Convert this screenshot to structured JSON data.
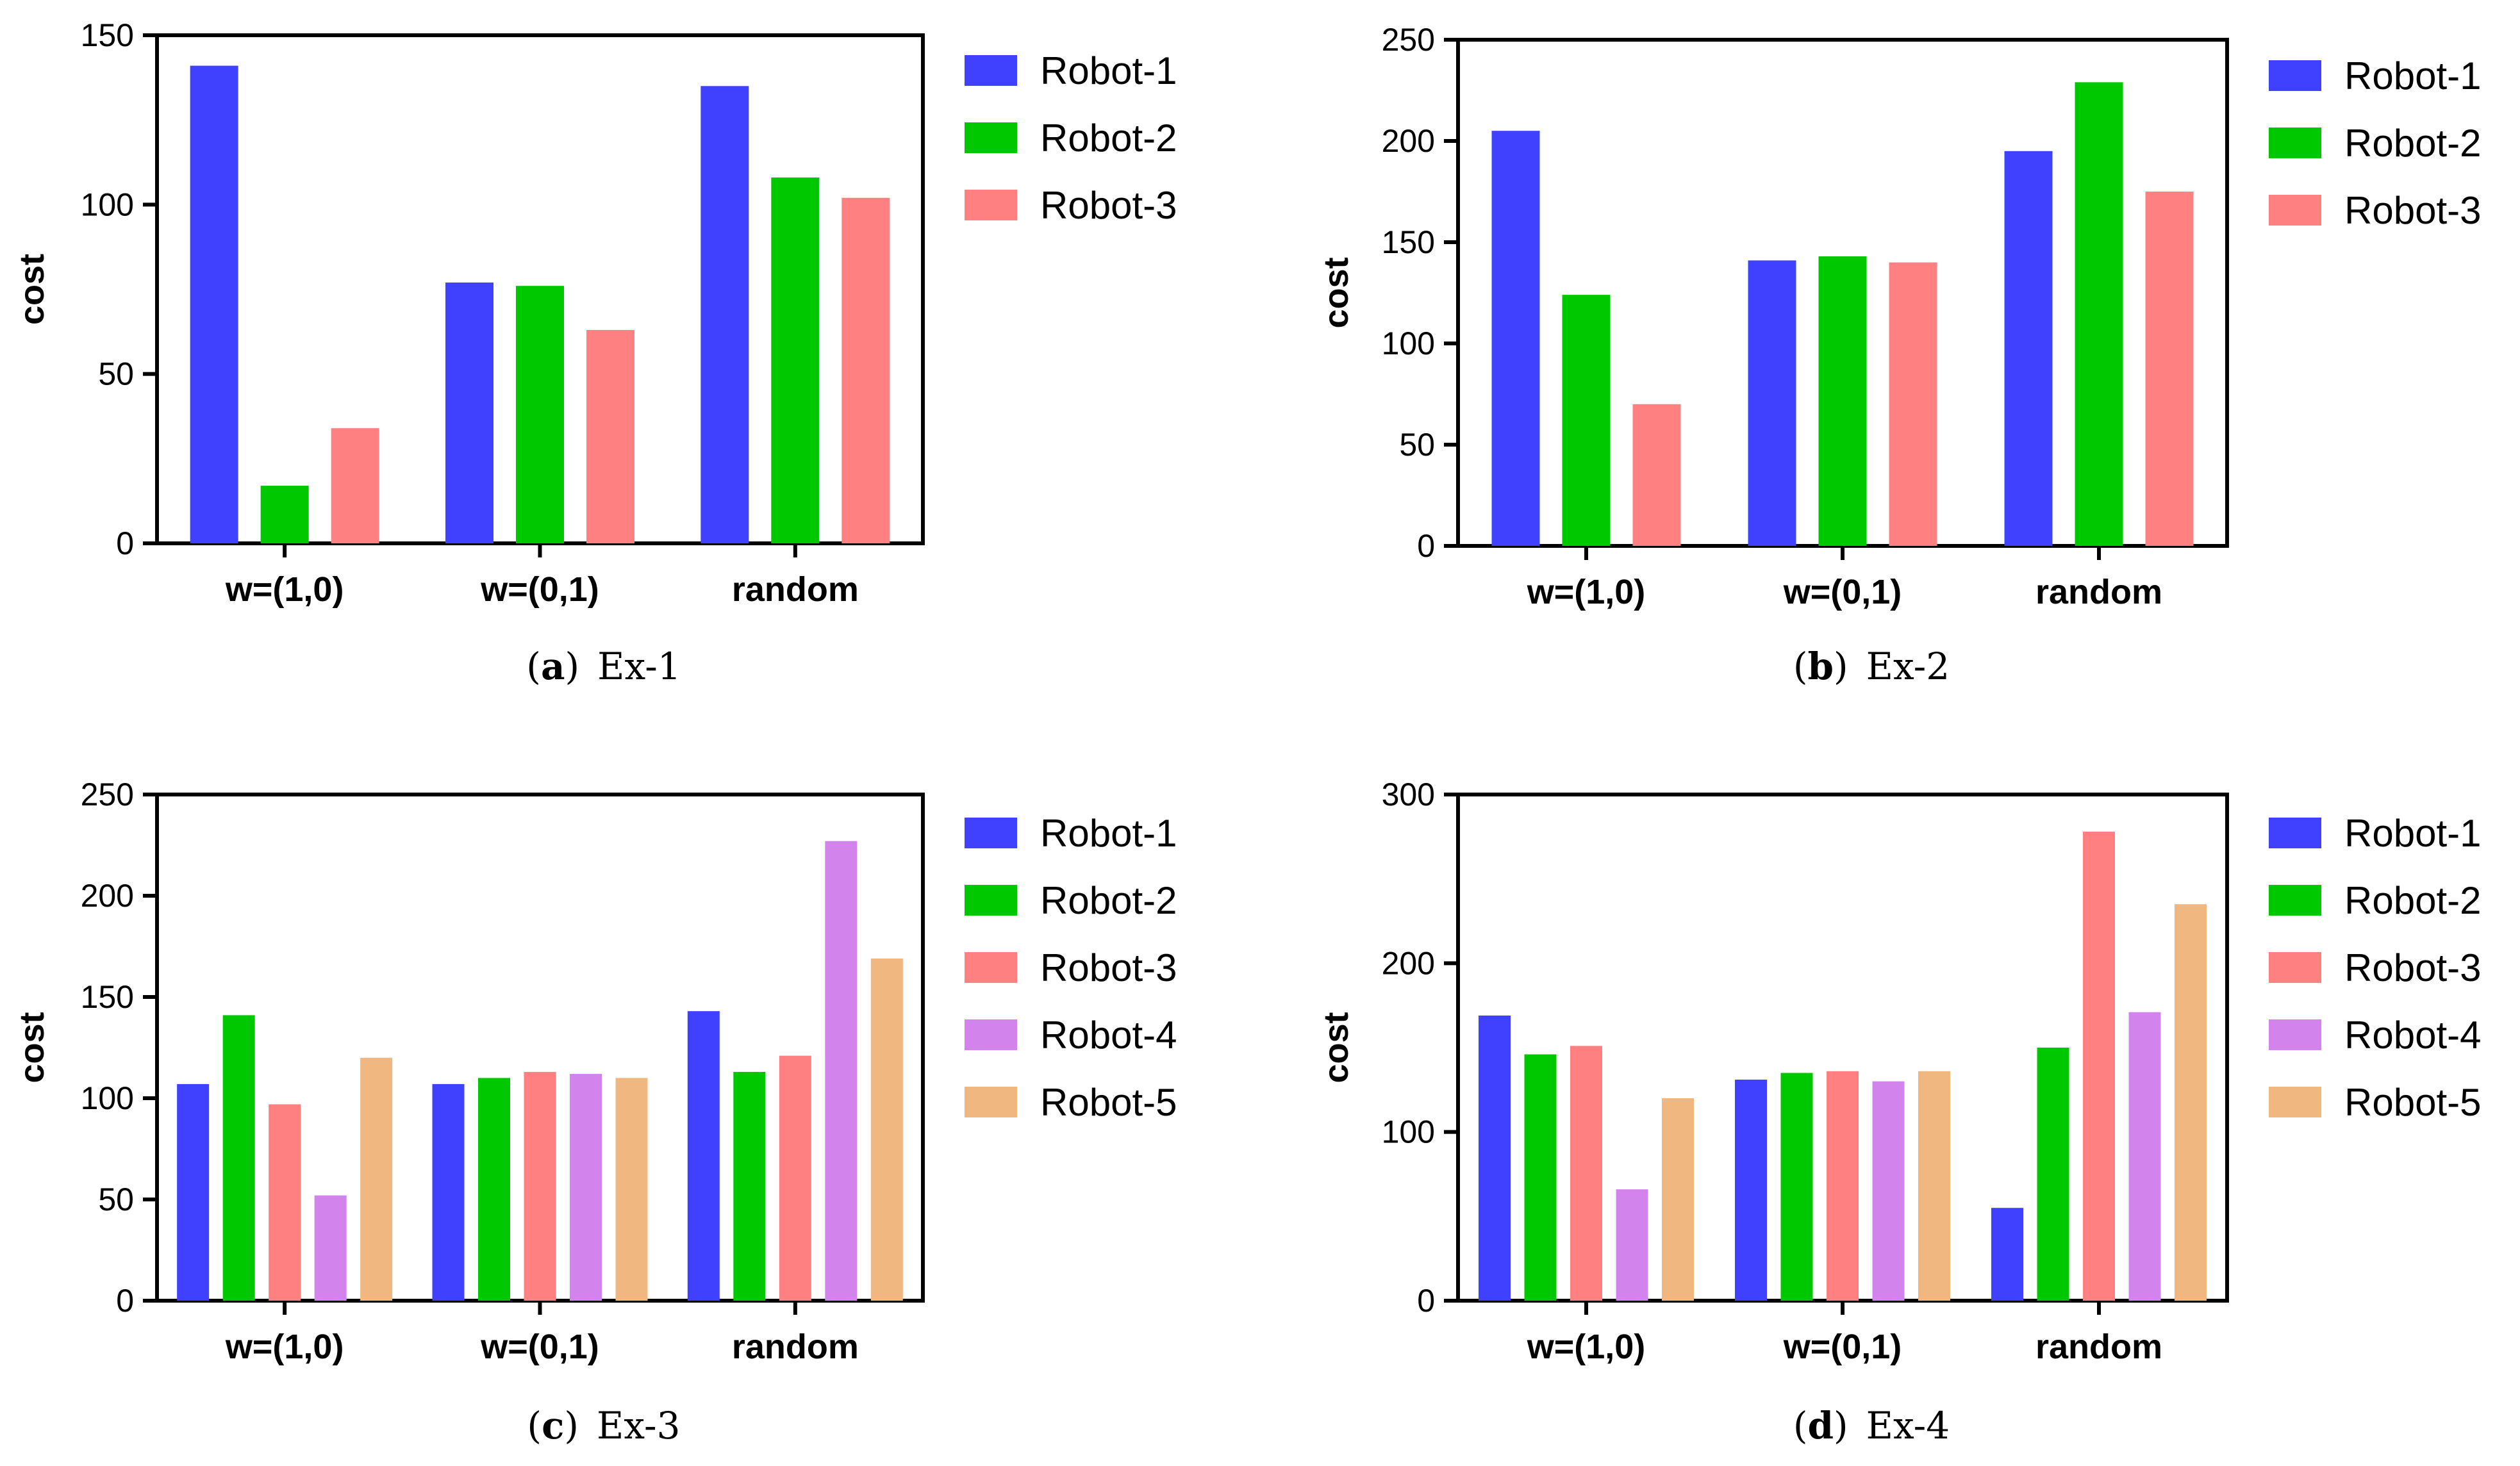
{
  "colors": {
    "Robot-1": "#4040ff",
    "Robot-2": "#00c800",
    "Robot-3": "#ff8080",
    "Robot-4": "#d283ec",
    "Robot-5": "#f0b880"
  },
  "chart_data": [
    {
      "type": "bar",
      "caption_letter": "a",
      "caption_text": "Ex-1",
      "ylabel": "cost",
      "xlabel": "",
      "ylim": [
        0,
        150
      ],
      "yticks": [
        0,
        50,
        100,
        150
      ],
      "categories": [
        "w=(1,0)",
        "w=(0,1)",
        "random"
      ],
      "legend_position": "right",
      "series": [
        {
          "name": "Robot-1",
          "values": [
            141,
            77,
            135
          ]
        },
        {
          "name": "Robot-2",
          "values": [
            17,
            76,
            108
          ]
        },
        {
          "name": "Robot-3",
          "values": [
            34,
            63,
            102
          ]
        }
      ]
    },
    {
      "type": "bar",
      "caption_letter": "b",
      "caption_text": "Ex-2",
      "ylabel": "cost",
      "xlabel": "",
      "ylim": [
        0,
        250
      ],
      "yticks": [
        0,
        50,
        100,
        150,
        200,
        250
      ],
      "categories": [
        "w=(1,0)",
        "w=(0,1)",
        "random"
      ],
      "legend_position": "right",
      "series": [
        {
          "name": "Robot-1",
          "values": [
            205,
            141,
            195
          ]
        },
        {
          "name": "Robot-2",
          "values": [
            124,
            143,
            229
          ]
        },
        {
          "name": "Robot-3",
          "values": [
            70,
            140,
            175
          ]
        }
      ]
    },
    {
      "type": "bar",
      "caption_letter": "c",
      "caption_text": "Ex-3",
      "ylabel": "cost",
      "xlabel": "",
      "ylim": [
        0,
        250
      ],
      "yticks": [
        0,
        50,
        100,
        150,
        200,
        250
      ],
      "categories": [
        "w=(1,0)",
        "w=(0,1)",
        "random"
      ],
      "legend_position": "right",
      "series": [
        {
          "name": "Robot-1",
          "values": [
            107,
            107,
            143
          ]
        },
        {
          "name": "Robot-2",
          "values": [
            141,
            110,
            113
          ]
        },
        {
          "name": "Robot-3",
          "values": [
            97,
            113,
            121
          ]
        },
        {
          "name": "Robot-4",
          "values": [
            52,
            112,
            227
          ]
        },
        {
          "name": "Robot-5",
          "values": [
            120,
            110,
            169
          ]
        }
      ]
    },
    {
      "type": "bar",
      "caption_letter": "d",
      "caption_text": "Ex-4",
      "ylabel": "cost",
      "xlabel": "",
      "ylim": [
        0,
        300
      ],
      "yticks": [
        0,
        100,
        200,
        300
      ],
      "categories": [
        "w=(1,0)",
        "w=(0,1)",
        "random"
      ],
      "legend_position": "right",
      "series": [
        {
          "name": "Robot-1",
          "values": [
            169,
            131,
            55
          ]
        },
        {
          "name": "Robot-2",
          "values": [
            146,
            135,
            150
          ]
        },
        {
          "name": "Robot-3",
          "values": [
            151,
            136,
            278
          ]
        },
        {
          "name": "Robot-4",
          "values": [
            66,
            130,
            171
          ]
        },
        {
          "name": "Robot-5",
          "values": [
            120,
            136,
            235
          ]
        }
      ]
    }
  ]
}
